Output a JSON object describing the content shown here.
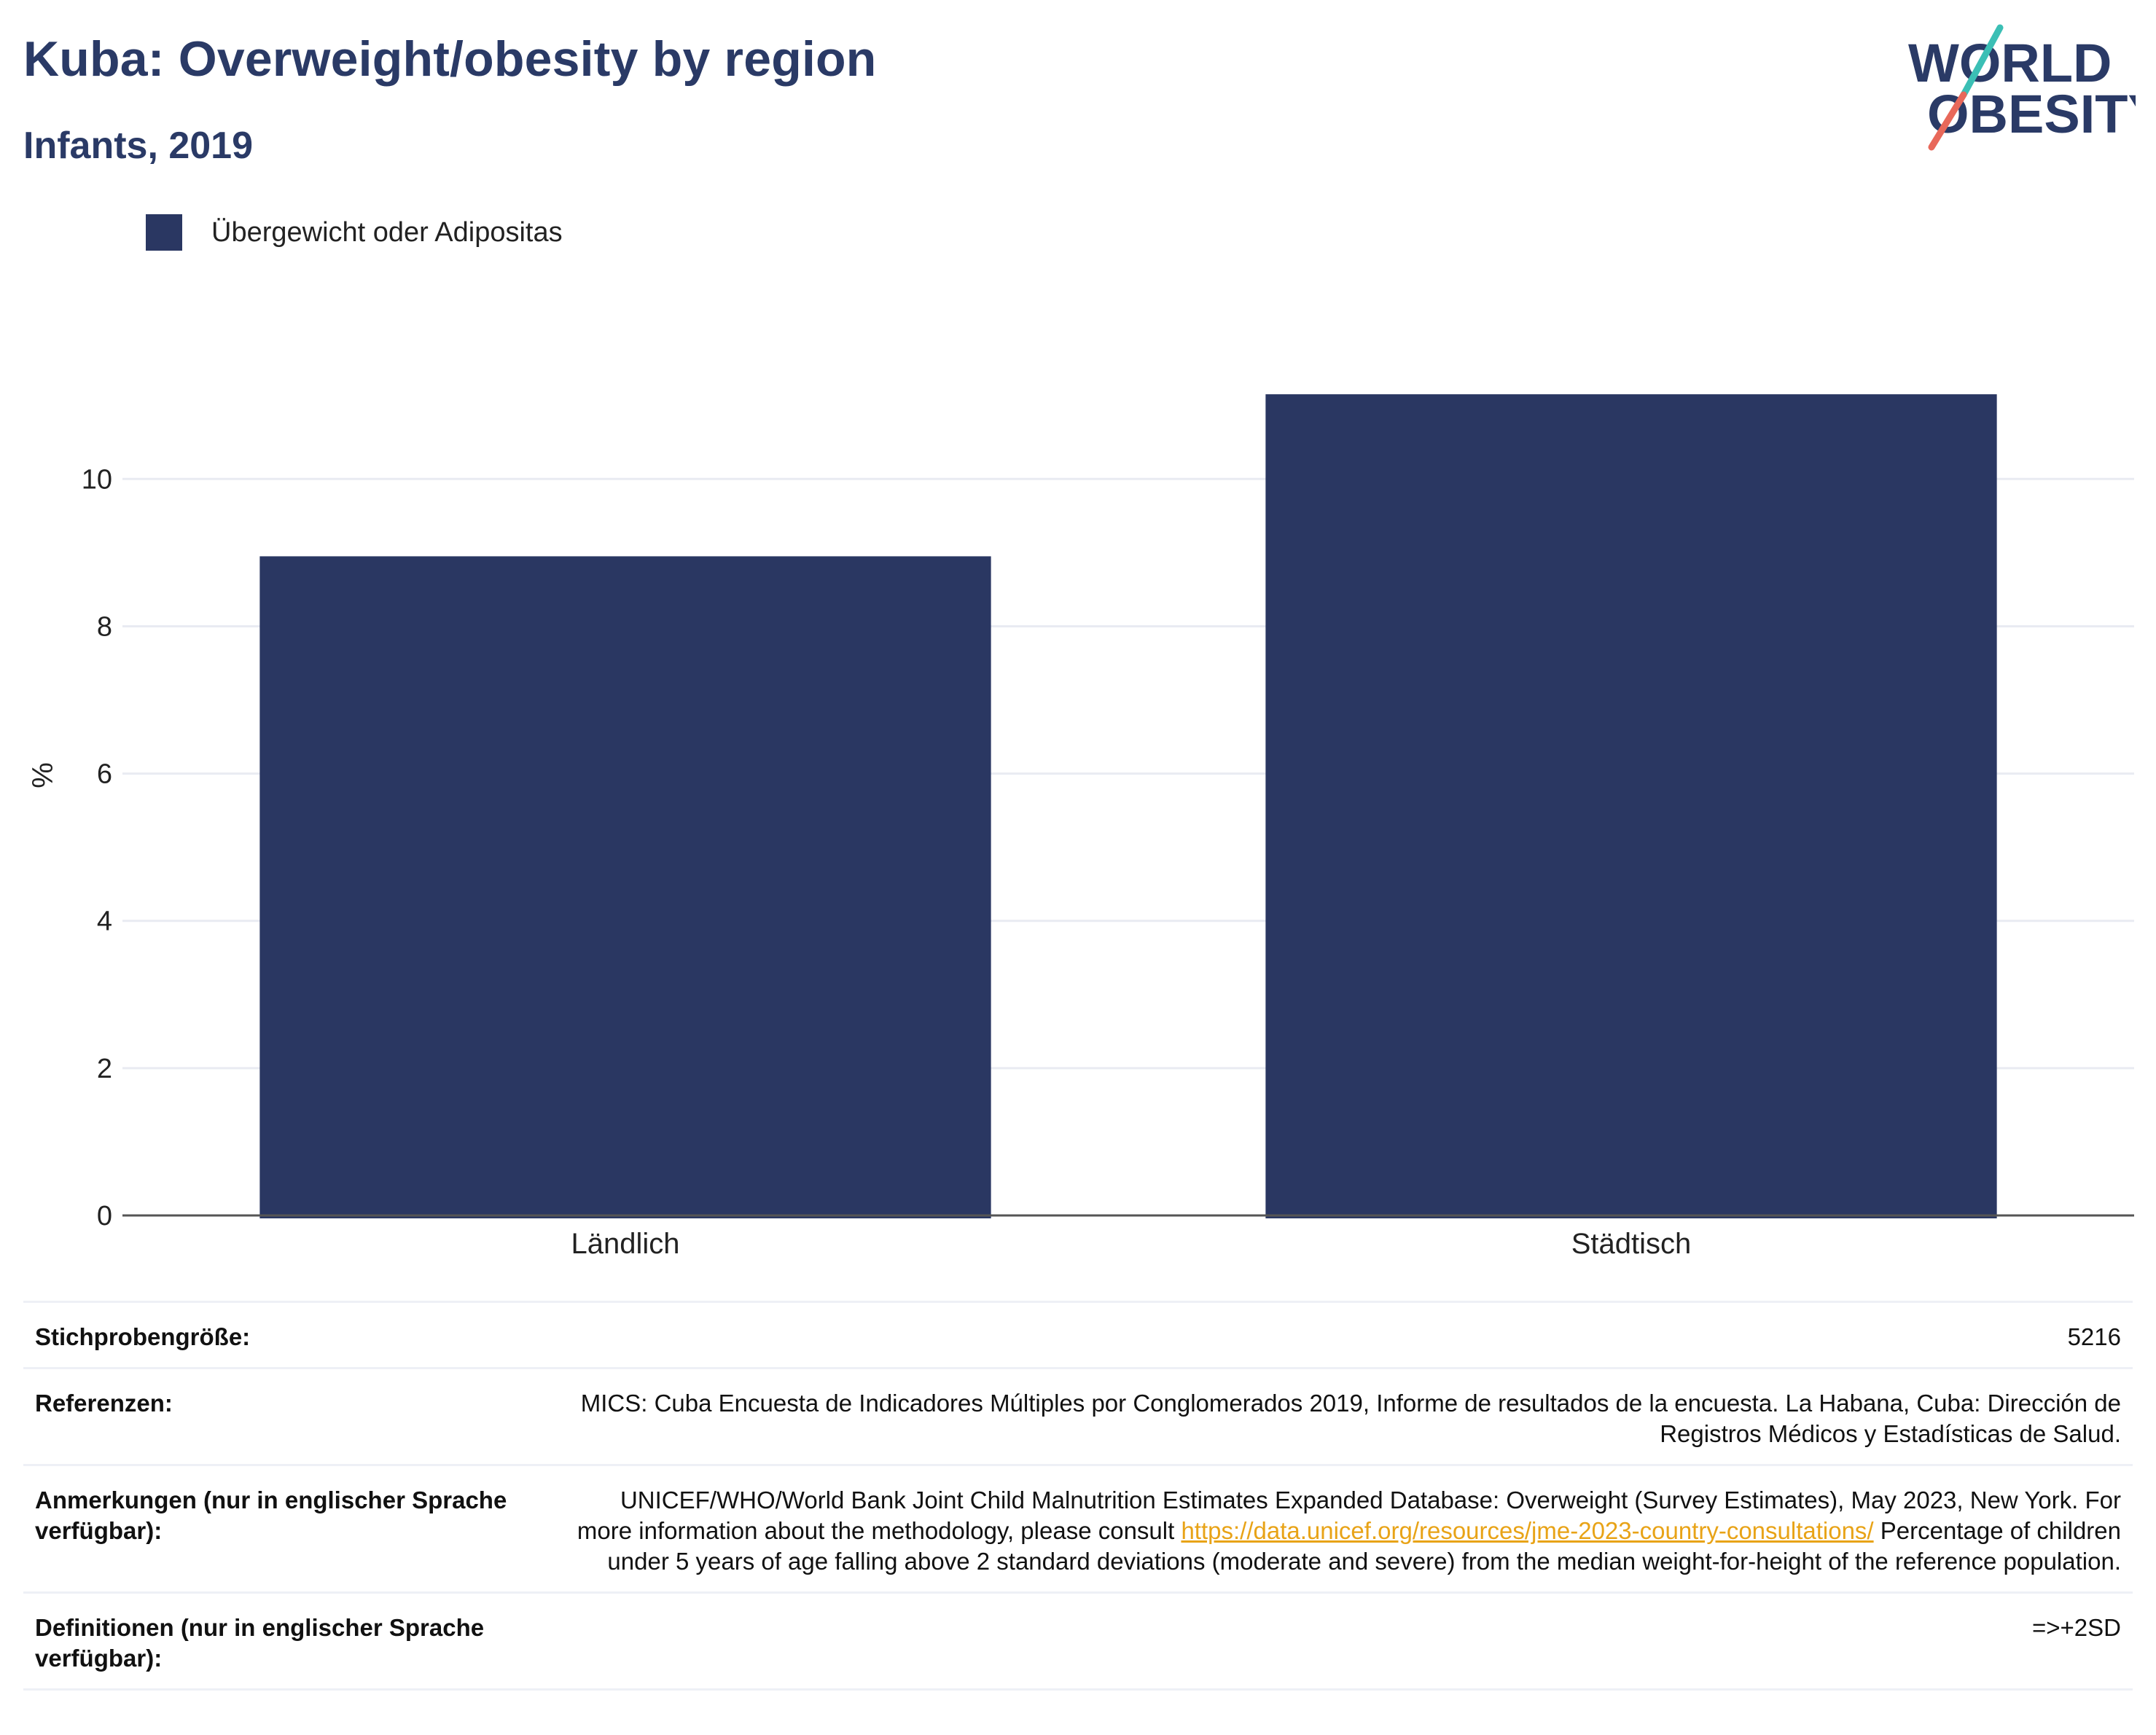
{
  "header": {
    "title": "Kuba: Overweight/obesity by region",
    "subtitle": "Infants, 2019"
  },
  "logo": {
    "line1": "WORLD",
    "line2": "OBESITY",
    "colors": {
      "text": "#2a3a66",
      "slash_top": "#3bbfb5",
      "slash_bottom": "#e8685a"
    }
  },
  "colors": {
    "bar": "#2a3762",
    "grid": "#e9ebf2",
    "axis": "#555555",
    "link": "#e8a317"
  },
  "chart_data": {
    "type": "bar",
    "categories": [
      "Ländlich",
      "Städtisch"
    ],
    "series": [
      {
        "name": "Übergewicht oder Adipositas",
        "values": [
          8.95,
          11.15
        ]
      }
    ],
    "ylabel": "%",
    "xlabel": "",
    "ylim": [
      0,
      12.15
    ],
    "yticks": [
      0,
      2,
      4,
      6,
      8,
      10
    ],
    "grid": true,
    "legend": "top-left"
  },
  "meta": {
    "rows": [
      {
        "key": "Stichprobengröße:",
        "value": "5216"
      },
      {
        "key": "Referenzen:",
        "value": "MICS: Cuba Encuesta de Indicadores Múltiples por Conglomerados 2019, Informe de resultados de la encuesta. La Habana, Cuba: Dirección de Registros Médicos y Estadísticas de Salud."
      },
      {
        "key": "Anmerkungen (nur in englischer Sprache verfügbar):",
        "value_pre": "UNICEF/WHO/World Bank Joint Child Malnutrition Estimates Expanded Database: Overweight (Survey Estimates), May 2023, New York. For more information about the methodology, please consult ",
        "link": "https://data.unicef.org/resources/jme-2023-country-consultations/",
        "value_post": " Percentage of children under 5 years of age falling above 2 standard deviations (moderate and severe) from the median weight-for-height of the reference population."
      },
      {
        "key": "Definitionen (nur in englischer Sprache verfügbar):",
        "value": "=>+2SD"
      }
    ]
  }
}
